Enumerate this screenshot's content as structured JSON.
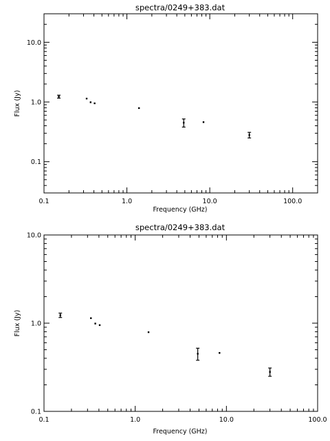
{
  "chart_data": [
    {
      "type": "scatter",
      "title": "spectra/0249+383.dat",
      "xlabel": "Frequency (GHz)",
      "ylabel": "Flux (Jy)",
      "xscale": "log",
      "yscale": "log",
      "xlim": [
        0.1,
        200.0
      ],
      "ylim": [
        0.03,
        30.0
      ],
      "xticks": [
        0.1,
        1.0,
        10.0,
        100.0
      ],
      "xtick_labels": [
        "0.1",
        "1.0",
        "10.0",
        "100.0"
      ],
      "yticks": [
        0.1,
        1.0,
        10.0
      ],
      "ytick_labels": [
        "0.1",
        "1.0",
        "10.0"
      ],
      "grid": false,
      "legend": "none",
      "color": "#000000",
      "points": [
        {
          "x": 0.151,
          "y": 1.23,
          "yerr": 0.07
        },
        {
          "x": 0.327,
          "y": 1.14,
          "yerr": 0.02
        },
        {
          "x": 0.365,
          "y": 0.99,
          "yerr": 0.02
        },
        {
          "x": 0.408,
          "y": 0.95,
          "yerr": 0.02
        },
        {
          "x": 1.4,
          "y": 0.79,
          "yerr": 0.01
        },
        {
          "x": 4.85,
          "y": 0.45,
          "yerr": 0.07
        },
        {
          "x": 8.4,
          "y": 0.46,
          "yerr": 0.01
        },
        {
          "x": 30.0,
          "y": 0.28,
          "yerr": 0.03
        }
      ]
    },
    {
      "type": "scatter",
      "title": "spectra/0249+383.dat",
      "xlabel": "Frequency (GHz)",
      "ylabel": "Flux (Jy)",
      "xscale": "log",
      "yscale": "log",
      "xlim": [
        0.1,
        100.0
      ],
      "ylim": [
        0.1,
        10.0
      ],
      "xticks": [
        0.1,
        1.0,
        10.0,
        100.0
      ],
      "xtick_labels": [
        "0.1",
        "1.0",
        "10.0",
        "100.0"
      ],
      "yticks": [
        0.1,
        1.0,
        10.0
      ],
      "ytick_labels": [
        "0.1",
        "1.0",
        "10.0"
      ],
      "grid": false,
      "legend": "none",
      "color": "#000000",
      "points": [
        {
          "x": 0.151,
          "y": 1.23,
          "yerr": 0.07
        },
        {
          "x": 0.327,
          "y": 1.14,
          "yerr": 0.02
        },
        {
          "x": 0.365,
          "y": 0.99,
          "yerr": 0.02
        },
        {
          "x": 0.408,
          "y": 0.95,
          "yerr": 0.02
        },
        {
          "x": 1.4,
          "y": 0.79,
          "yerr": 0.01
        },
        {
          "x": 4.85,
          "y": 0.45,
          "yerr": 0.07
        },
        {
          "x": 8.4,
          "y": 0.46,
          "yerr": 0.01
        },
        {
          "x": 30.0,
          "y": 0.28,
          "yerr": 0.03
        }
      ]
    }
  ]
}
